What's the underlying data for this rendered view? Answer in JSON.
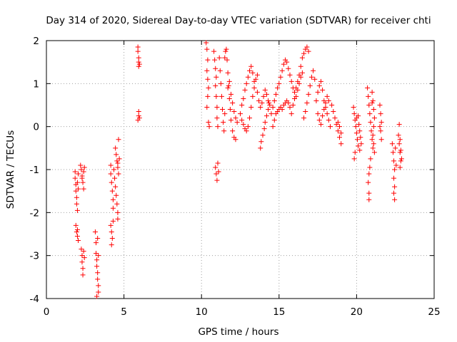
{
  "chart_data": {
    "type": "scatter",
    "title": "Day 314 of 2020, Sidereal Day-to-day VTEC variation (SDTVAR) for receiver chti",
    "xlabel": "GPS time / hours",
    "ylabel": "SDTVAR / TECUs",
    "xlim": [
      0,
      25
    ],
    "ylim": [
      -4,
      2
    ],
    "xticks": [
      0,
      5,
      10,
      15,
      20,
      25
    ],
    "yticks": [
      -4,
      -3,
      -2,
      -1,
      0,
      1,
      2
    ],
    "grid": true,
    "marker": "+",
    "color": "#ff0000",
    "series": [
      {
        "name": "SDTVAR",
        "points": [
          [
            1.85,
            -1.05
          ],
          [
            1.85,
            -1.2
          ],
          [
            1.9,
            -1.35
          ],
          [
            1.9,
            -1.5
          ],
          [
            1.95,
            -1.65
          ],
          [
            1.95,
            -1.8
          ],
          [
            2.0,
            -1.95
          ],
          [
            2.0,
            -1.3
          ],
          [
            2.05,
            -1.45
          ],
          [
            2.05,
            -1.1
          ],
          [
            1.9,
            -2.3
          ],
          [
            1.95,
            -2.45
          ],
          [
            2.0,
            -2.55
          ],
          [
            2.05,
            -2.65
          ],
          [
            2.0,
            -2.4
          ],
          [
            2.2,
            -0.9
          ],
          [
            2.25,
            -1.0
          ],
          [
            2.3,
            -1.15
          ],
          [
            2.35,
            -1.3
          ],
          [
            2.4,
            -1.45
          ],
          [
            2.45,
            -0.95
          ],
          [
            2.3,
            -1.2
          ],
          [
            2.4,
            -1.05
          ],
          [
            2.25,
            -2.85
          ],
          [
            2.3,
            -3.0
          ],
          [
            2.3,
            -3.15
          ],
          [
            2.35,
            -3.3
          ],
          [
            2.35,
            -3.45
          ],
          [
            2.4,
            -2.9
          ],
          [
            2.45,
            -3.05
          ],
          [
            3.15,
            -2.45
          ],
          [
            3.2,
            -2.7
          ],
          [
            3.2,
            -2.95
          ],
          [
            3.25,
            -3.1
          ],
          [
            3.25,
            -3.25
          ],
          [
            3.3,
            -3.4
          ],
          [
            3.3,
            -3.55
          ],
          [
            3.35,
            -3.7
          ],
          [
            3.35,
            -3.85
          ],
          [
            3.25,
            -3.95
          ],
          [
            3.3,
            -2.6
          ],
          [
            3.35,
            -3.0
          ],
          [
            4.15,
            -0.9
          ],
          [
            4.15,
            -1.1
          ],
          [
            4.2,
            -1.3
          ],
          [
            4.25,
            -1.5
          ],
          [
            4.3,
            -1.7
          ],
          [
            4.3,
            -1.9
          ],
          [
            4.35,
            -1.0
          ],
          [
            4.15,
            -2.3
          ],
          [
            4.2,
            -2.45
          ],
          [
            4.25,
            -2.6
          ],
          [
            4.2,
            -2.75
          ],
          [
            4.3,
            -2.2
          ],
          [
            4.4,
            -1.2
          ],
          [
            4.45,
            -1.4
          ],
          [
            4.5,
            -1.6
          ],
          [
            4.55,
            -1.8
          ],
          [
            4.6,
            -2.0
          ],
          [
            4.6,
            -2.15
          ],
          [
            4.45,
            -0.5
          ],
          [
            4.5,
            -0.65
          ],
          [
            4.55,
            -0.8
          ],
          [
            4.6,
            -0.95
          ],
          [
            4.65,
            -0.3
          ],
          [
            4.65,
            -1.1
          ],
          [
            4.7,
            -0.75
          ],
          [
            4.6,
            -0.85
          ],
          [
            5.9,
            1.85
          ],
          [
            5.9,
            1.75
          ],
          [
            5.95,
            1.6
          ],
          [
            5.95,
            1.5
          ],
          [
            6.0,
            1.45
          ],
          [
            5.95,
            1.4
          ],
          [
            5.95,
            0.35
          ],
          [
            5.95,
            0.25
          ],
          [
            6.0,
            0.2
          ],
          [
            5.9,
            0.15
          ],
          [
            10.3,
            1.95
          ],
          [
            10.35,
            1.8
          ],
          [
            10.4,
            1.55
          ],
          [
            10.35,
            1.3
          ],
          [
            10.4,
            1.1
          ],
          [
            10.45,
            0.9
          ],
          [
            10.4,
            0.7
          ],
          [
            10.35,
            0.45
          ],
          [
            10.45,
            0.1
          ],
          [
            10.5,
            0.0
          ],
          [
            10.8,
            1.75
          ],
          [
            10.85,
            1.55
          ],
          [
            10.9,
            1.35
          ],
          [
            10.95,
            1.15
          ],
          [
            10.9,
            0.95
          ],
          [
            10.95,
            0.7
          ],
          [
            11.0,
            0.45
          ],
          [
            11.0,
            0.2
          ],
          [
            11.05,
            0.0
          ],
          [
            10.9,
            -0.95
          ],
          [
            10.95,
            -1.1
          ],
          [
            11.0,
            -1.25
          ],
          [
            11.05,
            -0.85
          ],
          [
            11.1,
            -1.05
          ],
          [
            11.15,
            1.6
          ],
          [
            11.2,
            1.3
          ],
          [
            11.25,
            1.0
          ],
          [
            11.3,
            0.7
          ],
          [
            11.35,
            0.4
          ],
          [
            11.4,
            0.1
          ],
          [
            11.45,
            -0.1
          ],
          [
            11.5,
            0.3
          ],
          [
            11.5,
            1.6
          ],
          [
            11.55,
            1.75
          ],
          [
            11.6,
            1.8
          ],
          [
            11.65,
            1.55
          ],
          [
            11.7,
            1.25
          ],
          [
            11.75,
            0.95
          ],
          [
            11.8,
            0.65
          ],
          [
            11.85,
            0.4
          ],
          [
            11.9,
            0.15
          ],
          [
            12.0,
            -0.1
          ],
          [
            12.1,
            -0.25
          ],
          [
            12.2,
            -0.3
          ],
          [
            11.7,
            0.9
          ],
          [
            11.8,
            1.05
          ],
          [
            11.9,
            0.75
          ],
          [
            12.0,
            0.55
          ],
          [
            12.1,
            0.35
          ],
          [
            12.2,
            0.2
          ],
          [
            12.3,
            0.1
          ],
          [
            12.5,
            0.3
          ],
          [
            12.6,
            0.5
          ],
          [
            12.7,
            0.65
          ],
          [
            12.8,
            0.85
          ],
          [
            12.9,
            1.0
          ],
          [
            13.0,
            1.15
          ],
          [
            13.1,
            1.3
          ],
          [
            13.2,
            1.4
          ],
          [
            13.3,
            1.25
          ],
          [
            13.4,
            1.05
          ],
          [
            12.6,
            0.15
          ],
          [
            12.7,
            0.05
          ],
          [
            12.8,
            -0.05
          ],
          [
            12.9,
            -0.1
          ],
          [
            13.0,
            0.0
          ],
          [
            13.1,
            0.2
          ],
          [
            13.2,
            0.45
          ],
          [
            13.3,
            0.7
          ],
          [
            13.4,
            0.9
          ],
          [
            13.5,
            1.1
          ],
          [
            13.6,
            1.2
          ],
          [
            13.6,
            0.8
          ],
          [
            13.7,
            0.6
          ],
          [
            13.8,
            0.45
          ],
          [
            13.9,
            0.55
          ],
          [
            14.0,
            0.7
          ],
          [
            14.1,
            0.85
          ],
          [
            14.2,
            0.75
          ],
          [
            14.3,
            0.6
          ],
          [
            14.4,
            0.5
          ],
          [
            13.8,
            -0.5
          ],
          [
            13.85,
            -0.35
          ],
          [
            13.95,
            -0.2
          ],
          [
            14.05,
            -0.05
          ],
          [
            14.1,
            0.1
          ],
          [
            14.2,
            0.25
          ],
          [
            14.3,
            0.4
          ],
          [
            14.35,
            0.55
          ],
          [
            14.5,
            0.3
          ],
          [
            14.6,
            0.45
          ],
          [
            14.7,
            0.6
          ],
          [
            14.8,
            0.75
          ],
          [
            14.9,
            0.9
          ],
          [
            15.0,
            1.0
          ],
          [
            15.1,
            1.15
          ],
          [
            15.2,
            1.3
          ],
          [
            15.3,
            1.45
          ],
          [
            15.4,
            1.55
          ],
          [
            15.5,
            1.5
          ],
          [
            14.6,
            0.0
          ],
          [
            14.7,
            0.15
          ],
          [
            14.8,
            0.3
          ],
          [
            14.9,
            0.35
          ],
          [
            15.0,
            0.4
          ],
          [
            15.1,
            0.45
          ],
          [
            15.2,
            0.4
          ],
          [
            15.3,
            0.5
          ],
          [
            15.4,
            0.55
          ],
          [
            15.5,
            0.6
          ],
          [
            15.6,
            0.55
          ],
          [
            15.7,
            0.45
          ],
          [
            15.6,
            1.35
          ],
          [
            15.7,
            1.2
          ],
          [
            15.8,
            1.05
          ],
          [
            15.9,
            0.9
          ],
          [
            16.0,
            0.8
          ],
          [
            16.1,
            0.7
          ],
          [
            16.2,
            0.85
          ],
          [
            16.3,
            1.0
          ],
          [
            16.4,
            1.15
          ],
          [
            16.5,
            1.25
          ],
          [
            15.8,
            0.3
          ],
          [
            15.9,
            0.5
          ],
          [
            16.0,
            0.65
          ],
          [
            16.1,
            0.9
          ],
          [
            16.2,
            1.05
          ],
          [
            16.3,
            1.2
          ],
          [
            16.4,
            1.4
          ],
          [
            16.5,
            1.6
          ],
          [
            16.6,
            1.7
          ],
          [
            16.7,
            1.8
          ],
          [
            16.8,
            1.85
          ],
          [
            16.9,
            1.75
          ],
          [
            16.6,
            0.2
          ],
          [
            16.7,
            0.35
          ],
          [
            16.8,
            0.55
          ],
          [
            16.9,
            0.75
          ],
          [
            17.0,
            0.95
          ],
          [
            17.1,
            1.15
          ],
          [
            17.2,
            1.3
          ],
          [
            17.3,
            1.1
          ],
          [
            17.4,
            0.6
          ],
          [
            17.5,
            0.8
          ],
          [
            17.6,
            0.95
          ],
          [
            17.7,
            1.05
          ],
          [
            17.8,
            0.85
          ],
          [
            17.9,
            0.6
          ],
          [
            18.0,
            0.45
          ],
          [
            18.1,
            0.3
          ],
          [
            18.2,
            0.15
          ],
          [
            18.3,
            0.0
          ],
          [
            17.5,
            0.3
          ],
          [
            17.6,
            0.15
          ],
          [
            17.7,
            0.05
          ],
          [
            17.8,
            0.25
          ],
          [
            17.9,
            0.4
          ],
          [
            18.0,
            0.55
          ],
          [
            18.1,
            0.7
          ],
          [
            18.2,
            0.6
          ],
          [
            18.4,
            0.5
          ],
          [
            18.5,
            0.35
          ],
          [
            18.6,
            0.2
          ],
          [
            18.7,
            0.05
          ],
          [
            18.8,
            -0.1
          ],
          [
            18.9,
            -0.25
          ],
          [
            19.0,
            -0.4
          ],
          [
            18.8,
            0.1
          ],
          [
            18.9,
            0.0
          ],
          [
            19.0,
            -0.15
          ],
          [
            19.8,
            0.45
          ],
          [
            19.85,
            0.3
          ],
          [
            19.9,
            0.15
          ],
          [
            19.95,
            0.0
          ],
          [
            20.0,
            -0.15
          ],
          [
            20.05,
            -0.3
          ],
          [
            20.1,
            -0.45
          ],
          [
            19.9,
            -0.6
          ],
          [
            19.85,
            -0.75
          ],
          [
            20.0,
            0.2
          ],
          [
            20.1,
            0.25
          ],
          [
            20.15,
            0.05
          ],
          [
            20.2,
            -0.1
          ],
          [
            20.25,
            -0.25
          ],
          [
            20.3,
            -0.4
          ],
          [
            20.2,
            -0.55
          ],
          [
            20.7,
            0.9
          ],
          [
            20.75,
            0.7
          ],
          [
            20.8,
            0.5
          ],
          [
            20.85,
            0.3
          ],
          [
            20.9,
            0.1
          ],
          [
            20.95,
            -0.1
          ],
          [
            21.0,
            -0.3
          ],
          [
            21.05,
            -0.5
          ],
          [
            20.9,
            -0.75
          ],
          [
            20.85,
            -0.95
          ],
          [
            21.0,
            0.55
          ],
          [
            20.8,
            -1.1
          ],
          [
            20.75,
            -1.3
          ],
          [
            20.8,
            -1.55
          ],
          [
            20.8,
            -1.7
          ],
          [
            21.0,
            0.8
          ],
          [
            21.05,
            0.6
          ],
          [
            21.1,
            0.4
          ],
          [
            21.15,
            0.2
          ],
          [
            21.1,
            0.0
          ],
          [
            21.05,
            -0.2
          ],
          [
            21.1,
            -0.4
          ],
          [
            21.15,
            -0.6
          ],
          [
            21.5,
            0.5
          ],
          [
            21.55,
            0.3
          ],
          [
            21.6,
            0.1
          ],
          [
            21.55,
            -0.1
          ],
          [
            21.6,
            -0.3
          ],
          [
            21.5,
            0.0
          ],
          [
            22.3,
            -0.4
          ],
          [
            22.35,
            -0.6
          ],
          [
            22.4,
            -0.8
          ],
          [
            22.45,
            -1.0
          ],
          [
            22.4,
            -1.2
          ],
          [
            22.45,
            -1.4
          ],
          [
            22.4,
            -1.55
          ],
          [
            22.45,
            -1.7
          ],
          [
            22.5,
            -0.5
          ],
          [
            22.55,
            -0.9
          ],
          [
            22.7,
            -0.2
          ],
          [
            22.75,
            -0.4
          ],
          [
            22.8,
            -0.6
          ],
          [
            22.85,
            -0.8
          ],
          [
            22.8,
            -0.3
          ],
          [
            22.85,
            -0.55
          ],
          [
            22.9,
            -0.75
          ],
          [
            22.75,
            0.05
          ],
          [
            22.8,
            -0.95
          ]
        ]
      }
    ]
  }
}
